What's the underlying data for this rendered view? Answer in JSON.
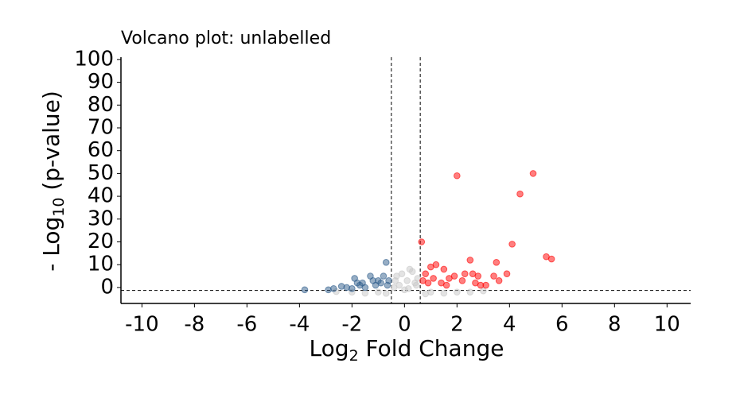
{
  "chart_data": {
    "type": "scatter",
    "title": "Volcano plot: unlabelled",
    "xlabel": [
      "Log",
      "2",
      " Fold Change"
    ],
    "ylabel": [
      "- Log",
      "10",
      " (p-value)"
    ],
    "xlim": [
      -10.8,
      10.9
    ],
    "ylim": [
      -7,
      101
    ],
    "xticks": [
      -10,
      -8,
      -6,
      -4,
      -2,
      0,
      2,
      4,
      6,
      8,
      10
    ],
    "yticks": [
      0,
      10,
      20,
      30,
      40,
      50,
      60,
      70,
      80,
      90,
      100
    ],
    "cutoff_lines": {
      "x": [
        -0.5,
        0.6
      ],
      "y": [
        -1.3
      ]
    },
    "series": [
      {
        "color": "#c8c8c8",
        "x": [
          -0.3,
          0.1,
          0.3,
          -0.2,
          0.4,
          0,
          -1,
          1,
          2,
          -2,
          0.2,
          -0.4,
          1.5,
          -1.5,
          2.5,
          0.5,
          -0.1,
          0.45,
          -0.35,
          0.15,
          3,
          -2.6,
          0.8,
          -0.7
        ],
        "y": [
          5,
          3,
          7,
          1,
          2,
          -1,
          -2,
          -2,
          -2,
          -2,
          8,
          0,
          -2.5,
          -2.5,
          -2,
          4,
          6,
          1,
          3,
          -0.5,
          -1.5,
          -1.8,
          -2.8,
          -2.6
        ]
      },
      {
        "color": "#2f5d8c",
        "x": [
          -3.8,
          -2.9,
          -2.7,
          -2.2,
          -1.9,
          -1.6,
          -1.3,
          -0.7,
          -0.9,
          -1.1,
          -1.5,
          -2.0,
          -0.6,
          -1.7,
          -1.0,
          -2.4,
          -0.8,
          -1.2,
          -0.65,
          -1.8
        ],
        "y": [
          -1,
          -1,
          -0.5,
          0,
          4,
          2,
          5,
          11,
          2,
          1,
          0,
          -0.5,
          3,
          1,
          3,
          0.5,
          5,
          3,
          1,
          2
        ]
      },
      {
        "color": "#ff0000",
        "x": [
          2.0,
          4.9,
          4.4,
          4.1,
          0.65,
          5.4,
          5.6,
          3.5,
          2.5,
          3.9,
          3.4,
          2.8,
          2.6,
          3.1,
          2.9,
          1.2,
          1.0,
          1.5,
          0.8,
          1.7,
          2.2,
          1.1,
          0.9,
          1.4,
          2.3,
          1.9,
          0.7,
          1.6,
          2.7,
          3.6
        ],
        "y": [
          49,
          50,
          41,
          19,
          20,
          13.5,
          12.5,
          11,
          12,
          6,
          5,
          5,
          6,
          1,
          1,
          10,
          9,
          8,
          6,
          4,
          3,
          4,
          2,
          2,
          6,
          5,
          3,
          1,
          2,
          3
        ]
      }
    ]
  }
}
